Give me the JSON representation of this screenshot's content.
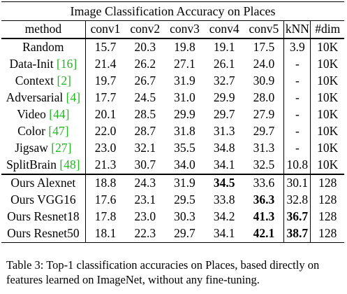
{
  "table": {
    "title": "Image Classification Accuracy on Places",
    "headers": [
      "method",
      "conv1",
      "conv2",
      "conv3",
      "conv4",
      "conv5",
      "kNN",
      "#dim"
    ],
    "baseline_rows": [
      {
        "name": "Random",
        "cite": "",
        "values": [
          "15.7",
          "20.3",
          "19.8",
          "19.1",
          "17.5",
          "3.9",
          "10K"
        ],
        "bold": []
      },
      {
        "name": "Data-Init ",
        "cite": "[16]",
        "values": [
          "21.4",
          "26.2",
          "27.1",
          "26.1",
          "24.0",
          "-",
          "10K"
        ],
        "bold": []
      },
      {
        "name": "Context ",
        "cite": "[2]",
        "values": [
          "19.7",
          "26.7",
          "31.9",
          "32.7",
          "30.9",
          "-",
          "10K"
        ],
        "bold": []
      },
      {
        "name": "Adversarial ",
        "cite": "[4]",
        "values": [
          "17.7",
          "24.5",
          "31.0",
          "29.9",
          "28.0",
          "-",
          "10K"
        ],
        "bold": []
      },
      {
        "name": "Video ",
        "cite": "[44]",
        "values": [
          "20.1",
          "28.5",
          "29.9",
          "29.7",
          "27.9",
          "-",
          "10K"
        ],
        "bold": []
      },
      {
        "name": "Color ",
        "cite": "[47]",
        "values": [
          "22.0",
          "28.7",
          "31.8",
          "31.3",
          "29.7",
          "-",
          "10K"
        ],
        "bold": []
      },
      {
        "name": "Jigsaw ",
        "cite": "[27]",
        "values": [
          "23.0",
          "32.1",
          "35.5",
          "34.8",
          "31.3",
          "-",
          "10K"
        ],
        "bold": []
      },
      {
        "name": "SplitBrain ",
        "cite": "[48]",
        "values": [
          "21.3",
          "30.7",
          "34.0",
          "34.1",
          "32.5",
          "10.8",
          "10K"
        ],
        "bold": []
      }
    ],
    "ours_rows": [
      {
        "name": "Ours Alexnet",
        "cite": "",
        "values": [
          "18.8",
          "24.3",
          "31.9",
          "34.5",
          "33.6",
          "30.1",
          "128"
        ],
        "bold": [
          3
        ]
      },
      {
        "name": "Ours VGG16",
        "cite": "",
        "values": [
          "17.6",
          "23.1",
          "29.5",
          "33.8",
          "36.3",
          "32.8",
          "128"
        ],
        "bold": [
          4
        ]
      },
      {
        "name": "Ours Resnet18",
        "cite": "",
        "values": [
          "17.8",
          "23.0",
          "30.3",
          "34.2",
          "41.3",
          "36.7",
          "128"
        ],
        "bold": [
          4,
          5
        ]
      },
      {
        "name": "Ours Resnet50",
        "cite": "",
        "values": [
          "18.1",
          "22.3",
          "29.7",
          "34.1",
          "42.1",
          "38.7",
          "128"
        ],
        "bold": [
          4,
          5
        ]
      }
    ],
    "caption": "Table 3: Top-1 classification accuracies on Places, based directly on features learned on ImageNet, without any fine-tuning."
  },
  "colors": {
    "citation": "#1fb81f"
  }
}
